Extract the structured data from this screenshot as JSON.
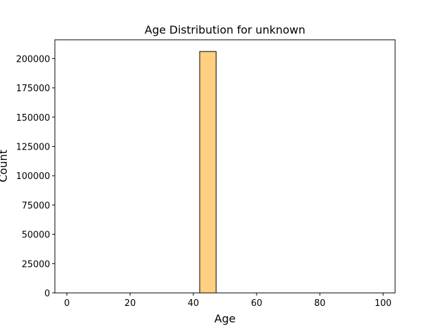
{
  "chart_data": {
    "type": "bar",
    "title": "Age Distribution for unknown",
    "xlabel": "Age",
    "ylabel": "Count",
    "xlim": [
      -3.8,
      103.8
    ],
    "ylim": [
      0,
      216000
    ],
    "x_ticks": [
      0,
      20,
      40,
      60,
      80,
      100
    ],
    "y_ticks": [
      0,
      25000,
      50000,
      75000,
      100000,
      125000,
      150000,
      175000,
      200000
    ],
    "bin_edges": [
      42.0,
      47.2
    ],
    "values": [
      206000
    ],
    "bar_color": "#ffd080",
    "edge_color": "#000000",
    "grid": false,
    "legend": "none"
  }
}
